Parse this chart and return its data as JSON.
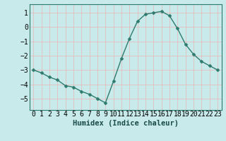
{
  "x": [
    0,
    1,
    2,
    3,
    4,
    5,
    6,
    7,
    8,
    9,
    10,
    11,
    12,
    13,
    14,
    15,
    16,
    17,
    18,
    19,
    20,
    21,
    22,
    23
  ],
  "y": [
    -3.0,
    -3.2,
    -3.5,
    -3.7,
    -4.1,
    -4.2,
    -4.5,
    -4.7,
    -5.0,
    -5.3,
    -3.8,
    -2.2,
    -0.8,
    0.4,
    0.9,
    1.0,
    1.1,
    0.8,
    -0.1,
    -1.2,
    -1.9,
    -2.4,
    -2.7,
    -3.0
  ],
  "line_color": "#2e7b6e",
  "marker": "D",
  "marker_size": 2.5,
  "bg_color": "#c8eaea",
  "grid_color": "#e8b4b4",
  "axis_color": "#2e7b6e",
  "xlabel": "Humidex (Indice chaleur)",
  "xlabel_fontsize": 7.5,
  "tick_fontsize": 7,
  "ylim": [
    -5.8,
    1.6
  ],
  "yticks": [
    -5,
    -4,
    -3,
    -2,
    -1,
    0,
    1
  ],
  "xlim": [
    -0.5,
    23.5
  ],
  "xticks": [
    0,
    1,
    2,
    3,
    4,
    5,
    6,
    7,
    8,
    9,
    10,
    11,
    12,
    13,
    14,
    15,
    16,
    17,
    18,
    19,
    20,
    21,
    22,
    23
  ]
}
